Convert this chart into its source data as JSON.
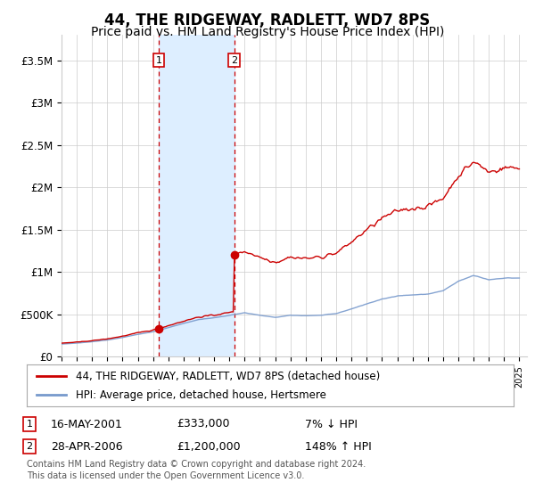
{
  "title": "44, THE RIDGEWAY, RADLETT, WD7 8PS",
  "subtitle": "Price paid vs. HM Land Registry's House Price Index (HPI)",
  "title_fontsize": 12,
  "subtitle_fontsize": 10,
  "ylabel_ticks": [
    "£0",
    "£500K",
    "£1M",
    "£1.5M",
    "£2M",
    "£2.5M",
    "£3M",
    "£3.5M"
  ],
  "ytick_values": [
    0,
    500000,
    1000000,
    1500000,
    2000000,
    2500000,
    3000000,
    3500000
  ],
  "ylim": [
    0,
    3800000
  ],
  "xlim_start": 1995.0,
  "xlim_end": 2025.5,
  "red_line_color": "#cc0000",
  "blue_line_color": "#7799cc",
  "shade_color": "#ddeeff",
  "sale1_year": 2001.37,
  "sale1_price": 333000,
  "sale2_year": 2006.32,
  "sale2_price": 1200000,
  "legend_red": "44, THE RIDGEWAY, RADLETT, WD7 8PS (detached house)",
  "legend_blue": "HPI: Average price, detached house, Hertsmere",
  "table_rows": [
    {
      "num": "1",
      "date": "16-MAY-2001",
      "price": "£333,000",
      "hpi": "7% ↓ HPI"
    },
    {
      "num": "2",
      "date": "28-APR-2006",
      "price": "£1,200,000",
      "hpi": "148% ↑ HPI"
    }
  ],
  "footnote1": "Contains HM Land Registry data © Crown copyright and database right 2024.",
  "footnote2": "This data is licensed under the Open Government Licence v3.0.",
  "background_color": "#ffffff",
  "grid_color": "#cccccc"
}
